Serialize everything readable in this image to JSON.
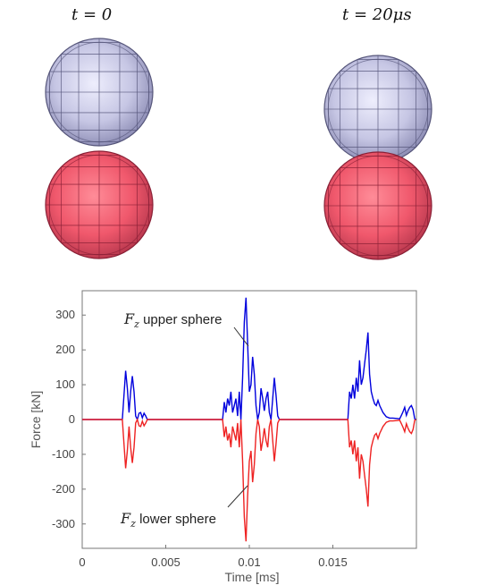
{
  "panel_labels": {
    "left": "t = 0",
    "right": "t = 20μs"
  },
  "colors": {
    "upper": "#0000dd",
    "lower": "#ee2222",
    "upper_sphere_fill": "#c9c9e6",
    "lower_sphere_fill": "#f06a7c"
  },
  "chart_data": {
    "type": "line",
    "xlabel": "Time [ms]",
    "ylabel": "Force [kN]",
    "xlim": [
      0,
      0.02
    ],
    "ylim": [
      -370,
      370
    ],
    "xticks": [
      "0",
      "0.005",
      "0.01",
      "0.015"
    ],
    "yticks": [
      "300",
      "200",
      "100",
      "0",
      "-100",
      "-200",
      "-300"
    ],
    "grid": false,
    "annotations": {
      "upper": {
        "symbol": "F",
        "subscript": "z",
        "text": " upper sphere"
      },
      "lower": {
        "symbol": "F",
        "subscript": "z",
        "text": " lower sphere"
      }
    },
    "series": [
      {
        "name": "Fz upper sphere",
        "x": [
          0,
          0.0024,
          0.0026,
          0.0027,
          0.0028,
          0.0029,
          0.003,
          0.0031,
          0.0032,
          0.0033,
          0.0034,
          0.0035,
          0.0036,
          0.0037,
          0.0038,
          0.0039,
          0.0084,
          0.0085,
          0.0086,
          0.0087,
          0.0088,
          0.0089,
          0.009,
          0.0091,
          0.0092,
          0.0093,
          0.0094,
          0.0095,
          0.0096,
          0.0097,
          0.0098,
          0.0099,
          0.01,
          0.0101,
          0.0102,
          0.0103,
          0.0104,
          0.0105,
          0.0106,
          0.0107,
          0.0108,
          0.0109,
          0.011,
          0.0111,
          0.0112,
          0.0113,
          0.0114,
          0.0115,
          0.0116,
          0.0117,
          0.0118,
          0.0119,
          0.012,
          0.0121,
          0.0122,
          0.0159,
          0.016,
          0.0161,
          0.0162,
          0.0163,
          0.0164,
          0.0165,
          0.0166,
          0.0167,
          0.0168,
          0.0169,
          0.017,
          0.0171,
          0.0172,
          0.0173,
          0.0174,
          0.0175,
          0.0176,
          0.0177,
          0.0178,
          0.018,
          0.0182,
          0.0184,
          0.0186,
          0.0188,
          0.019,
          0.0191,
          0.0192,
          0.0193,
          0.0194,
          0.0195,
          0.0196,
          0.0197,
          0.0198,
          0.0199
        ],
        "values": [
          0,
          0,
          140,
          90,
          20,
          80,
          125,
          80,
          10,
          0,
          18,
          20,
          5,
          18,
          10,
          0,
          0,
          50,
          20,
          60,
          40,
          80,
          20,
          40,
          60,
          10,
          80,
          0,
          120,
          280,
          350,
          220,
          80,
          100,
          180,
          130,
          40,
          0,
          20,
          90,
          60,
          25,
          60,
          80,
          20,
          0,
          60,
          120,
          70,
          10,
          0,
          0,
          0,
          0,
          0,
          0,
          80,
          60,
          100,
          60,
          120,
          80,
          170,
          100,
          120,
          160,
          200,
          250,
          130,
          80,
          60,
          45,
          40,
          55,
          40,
          20,
          8,
          4,
          4,
          3,
          2,
          12,
          22,
          35,
          12,
          25,
          35,
          40,
          28,
          2
        ]
      },
      {
        "name": "Fz lower sphere",
        "x": [
          0,
          0.0024,
          0.0026,
          0.0027,
          0.0028,
          0.0029,
          0.003,
          0.0031,
          0.0032,
          0.0033,
          0.0034,
          0.0035,
          0.0036,
          0.0037,
          0.0038,
          0.0039,
          0.0084,
          0.0085,
          0.0086,
          0.0087,
          0.0088,
          0.0089,
          0.009,
          0.0091,
          0.0092,
          0.0093,
          0.0094,
          0.0095,
          0.0096,
          0.0097,
          0.0098,
          0.0099,
          0.01,
          0.0101,
          0.0102,
          0.0103,
          0.0104,
          0.0105,
          0.0106,
          0.0107,
          0.0108,
          0.0109,
          0.011,
          0.0111,
          0.0112,
          0.0113,
          0.0114,
          0.0115,
          0.0116,
          0.0117,
          0.0118,
          0.0119,
          0.012,
          0.0121,
          0.0122,
          0.0159,
          0.016,
          0.0161,
          0.0162,
          0.0163,
          0.0164,
          0.0165,
          0.0166,
          0.0167,
          0.0168,
          0.0169,
          0.017,
          0.0171,
          0.0172,
          0.0173,
          0.0174,
          0.0175,
          0.0176,
          0.0177,
          0.0178,
          0.018,
          0.0182,
          0.0184,
          0.0186,
          0.0188,
          0.019,
          0.0191,
          0.0192,
          0.0193,
          0.0194,
          0.0195,
          0.0196,
          0.0197,
          0.0198,
          0.0199
        ],
        "values": [
          0,
          0,
          -140,
          -90,
          -20,
          -80,
          -125,
          -80,
          -10,
          0,
          -18,
          -20,
          -5,
          -18,
          -10,
          0,
          0,
          -50,
          -20,
          -60,
          -40,
          -80,
          -20,
          -40,
          -60,
          -10,
          -80,
          0,
          -120,
          -280,
          -350,
          -220,
          -120,
          -90,
          -180,
          -130,
          -40,
          0,
          -20,
          -90,
          -60,
          -25,
          -60,
          -80,
          -20,
          0,
          -60,
          -120,
          -70,
          -10,
          0,
          0,
          0,
          0,
          0,
          0,
          -80,
          -60,
          -100,
          -60,
          -120,
          -80,
          -170,
          -100,
          -120,
          -160,
          -200,
          -250,
          -130,
          -80,
          -60,
          -45,
          -40,
          -55,
          -40,
          -20,
          -8,
          -4,
          -4,
          -3,
          -2,
          -12,
          -22,
          -35,
          -12,
          -25,
          -35,
          -40,
          -28,
          -2
        ]
      }
    ]
  }
}
